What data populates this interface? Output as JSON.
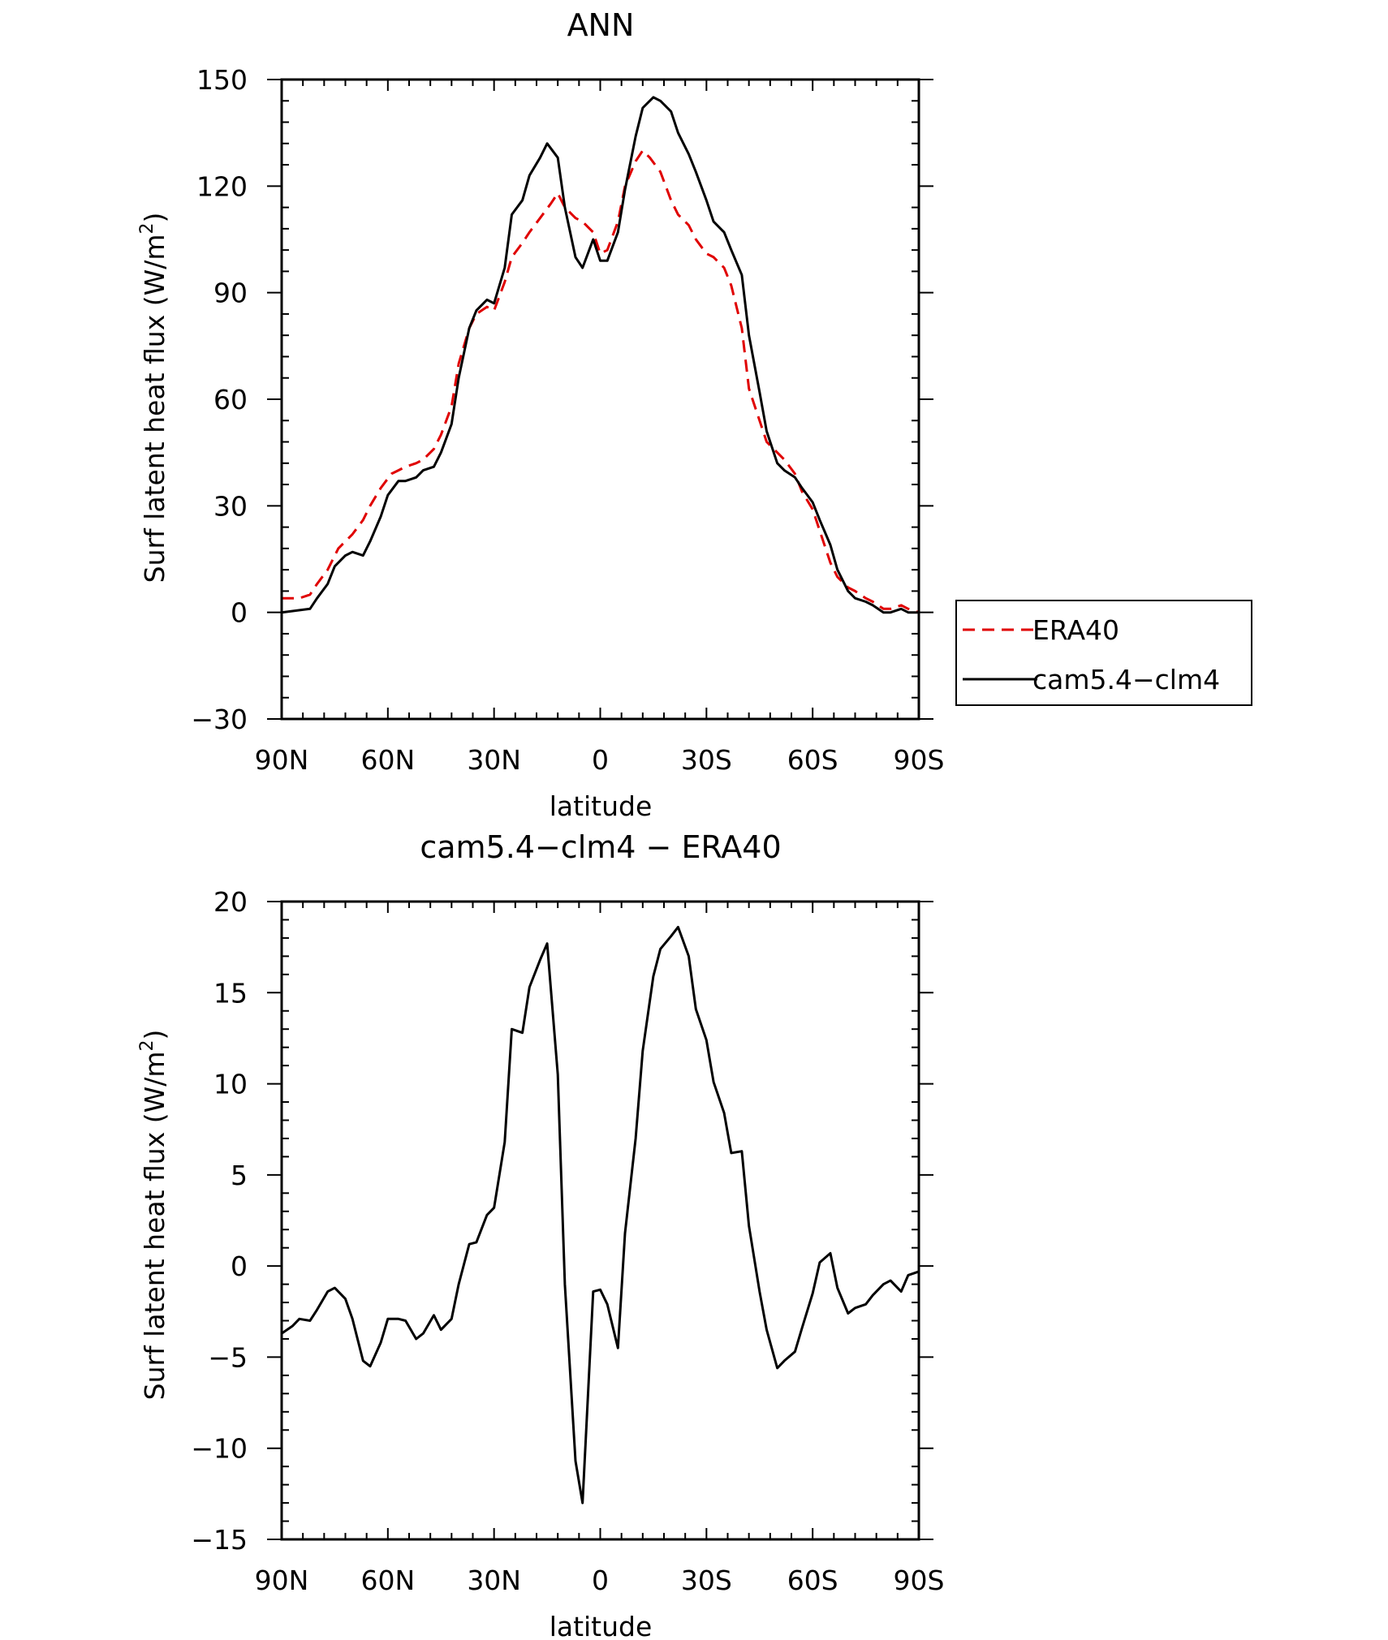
{
  "chart_data": [
    {
      "type": "line",
      "title": "ANN",
      "xlabel": "latitude",
      "ylabel": "Surf latent heat flux (W/m²)",
      "ylabel_parts": {
        "base": "Surf latent heat flux (W/m",
        "sup": "2",
        "end": ")"
      },
      "x_direction": "north-to-south",
      "xlim": [
        90,
        -90
      ],
      "ylim": [
        -30,
        150
      ],
      "xticks": [
        90,
        60,
        30,
        0,
        -30,
        -60,
        -90
      ],
      "xtick_labels": [
        "90N",
        "60N",
        "30N",
        "0",
        "30S",
        "60S",
        "90S"
      ],
      "yticks": [
        -30,
        0,
        30,
        60,
        90,
        120,
        150
      ],
      "ytick_labels": [
        "−30",
        "0",
        "30",
        "60",
        "90",
        "120",
        "150"
      ],
      "legend_position": "right",
      "series": [
        {
          "name": "ERA40",
          "color": "#e00000",
          "dash": "dashed",
          "x": [
            90,
            85,
            82,
            80,
            77,
            74,
            72,
            70,
            67,
            65,
            62,
            59,
            57,
            55,
            52,
            50,
            47,
            45,
            42,
            40,
            37,
            35,
            32,
            30,
            27,
            25,
            22,
            20,
            17,
            14,
            12,
            10,
            7,
            5,
            2,
            0,
            -2,
            -5,
            -7,
            -10,
            -12,
            -14,
            -17,
            -20,
            -22,
            -25,
            -27,
            -30,
            -32,
            -35,
            -37,
            -40,
            -42,
            -45,
            -47,
            -50,
            -52,
            -55,
            -57,
            -60,
            -62,
            -65,
            -67,
            -70,
            -72,
            -75,
            -77,
            -80,
            -82,
            -85,
            -87,
            -90
          ],
          "y": [
            4,
            4,
            5,
            8,
            12,
            18,
            20,
            22,
            26,
            30,
            35,
            39,
            40,
            41,
            42,
            43,
            46,
            50,
            58,
            70,
            80,
            84,
            86,
            85,
            93,
            100,
            104,
            107,
            111,
            115,
            118,
            114,
            111,
            110,
            107,
            101,
            102,
            110,
            120,
            127,
            130,
            128,
            124,
            116,
            112,
            109,
            105,
            101,
            100,
            97,
            92,
            80,
            63,
            54,
            48,
            45,
            43,
            39,
            34,
            29,
            23,
            14,
            10,
            7,
            6,
            4,
            3,
            1,
            1,
            2,
            1,
            0
          ]
        },
        {
          "name": "cam5.4−clm4",
          "color": "#000000",
          "dash": "solid",
          "x": [
            90,
            82,
            80,
            77,
            75,
            72,
            70,
            67,
            65,
            62,
            60,
            57,
            55,
            52,
            50,
            47,
            45,
            42,
            40,
            37,
            35,
            32,
            30,
            27,
            25,
            22,
            20,
            17,
            15,
            12,
            10,
            7,
            5,
            2,
            0,
            -2,
            -5,
            -7,
            -10,
            -12,
            -15,
            -17,
            -20,
            -22,
            -25,
            -27,
            -30,
            -32,
            -35,
            -37,
            -40,
            -42,
            -45,
            -47,
            -50,
            -52,
            -55,
            -57,
            -60,
            -62,
            -65,
            -67,
            -70,
            -72,
            -75,
            -77,
            -80,
            -82,
            -85,
            -87,
            -90
          ],
          "y": [
            0,
            1,
            4,
            8,
            13,
            16,
            17,
            16,
            20,
            27,
            33,
            37,
            37,
            38,
            40,
            41,
            45,
            53,
            66,
            80,
            85,
            88,
            87,
            97,
            112,
            116,
            123,
            128,
            132,
            128,
            114,
            100,
            97,
            105,
            99,
            99,
            107,
            119,
            134,
            142,
            145,
            144,
            141,
            135,
            129,
            124,
            116,
            110,
            107,
            102,
            95,
            78,
            62,
            51,
            42,
            40,
            38,
            35,
            31,
            26,
            19,
            12,
            6,
            4,
            3,
            2,
            0,
            0,
            1,
            0,
            0
          ]
        }
      ]
    },
    {
      "type": "line",
      "title": "cam5.4−clm4 − ERA40",
      "xlabel": "latitude",
      "ylabel": "Surf latent heat flux (W/m²)",
      "ylabel_parts": {
        "base": "Surf latent heat flux (W/m",
        "sup": "2",
        "end": ")"
      },
      "x_direction": "north-to-south",
      "xlim": [
        90,
        -90
      ],
      "ylim": [
        -15,
        20
      ],
      "xticks": [
        90,
        60,
        30,
        0,
        -30,
        -60,
        -90
      ],
      "xtick_labels": [
        "90N",
        "60N",
        "30N",
        "0",
        "30S",
        "60S",
        "90S"
      ],
      "yticks": [
        -15,
        -10,
        -5,
        0,
        5,
        10,
        15,
        20
      ],
      "ytick_labels": [
        "−15",
        "−10",
        "−5",
        "0",
        "5",
        "10",
        "15",
        "20"
      ],
      "series": [
        {
          "color": "#000000",
          "dash": "solid",
          "x": [
            90,
            87,
            85,
            82,
            80,
            77,
            75,
            72,
            70,
            67,
            65,
            62,
            60,
            57,
            55,
            52,
            50,
            47,
            45,
            42,
            40,
            37,
            35,
            32,
            30,
            27,
            25,
            22,
            20,
            17,
            15,
            12,
            10,
            7,
            5,
            2,
            0,
            -2,
            -5,
            -7,
            -10,
            -12,
            -15,
            -17,
            -20,
            -22,
            -25,
            -27,
            -30,
            -32,
            -35,
            -37,
            -40,
            -42,
            -45,
            -47,
            -50,
            -52,
            -55,
            -57,
            -60,
            -62,
            -65,
            -67,
            -70,
            -72,
            -75,
            -77,
            -80,
            -82,
            -85,
            -87,
            -90
          ],
          "y": [
            -3.7,
            -3.3,
            -2.9,
            -3.0,
            -2.4,
            -1.4,
            -1.2,
            -1.8,
            -2.9,
            -5.2,
            -5.5,
            -4.2,
            -2.9,
            -2.9,
            -3.0,
            -4.0,
            -3.7,
            -2.7,
            -3.5,
            -2.9,
            -1.0,
            1.2,
            1.3,
            2.8,
            3.2,
            6.8,
            13.0,
            12.8,
            15.3,
            16.8,
            17.7,
            10.5,
            -1.0,
            -10.7,
            -13.0,
            -1.4,
            -1.3,
            -2.1,
            -4.5,
            1.8,
            7.0,
            11.8,
            15.9,
            17.4,
            18.1,
            18.6,
            17.0,
            14.1,
            12.4,
            10.1,
            8.4,
            6.2,
            6.3,
            2.2,
            -1.4,
            -3.5,
            -5.6,
            -5.2,
            -4.7,
            -3.4,
            -1.5,
            0.2,
            0.7,
            -1.2,
            -2.6,
            -2.3,
            -2.1,
            -1.6,
            -1.0,
            -0.8,
            -1.4,
            -0.5,
            -0.3
          ]
        }
      ]
    }
  ]
}
